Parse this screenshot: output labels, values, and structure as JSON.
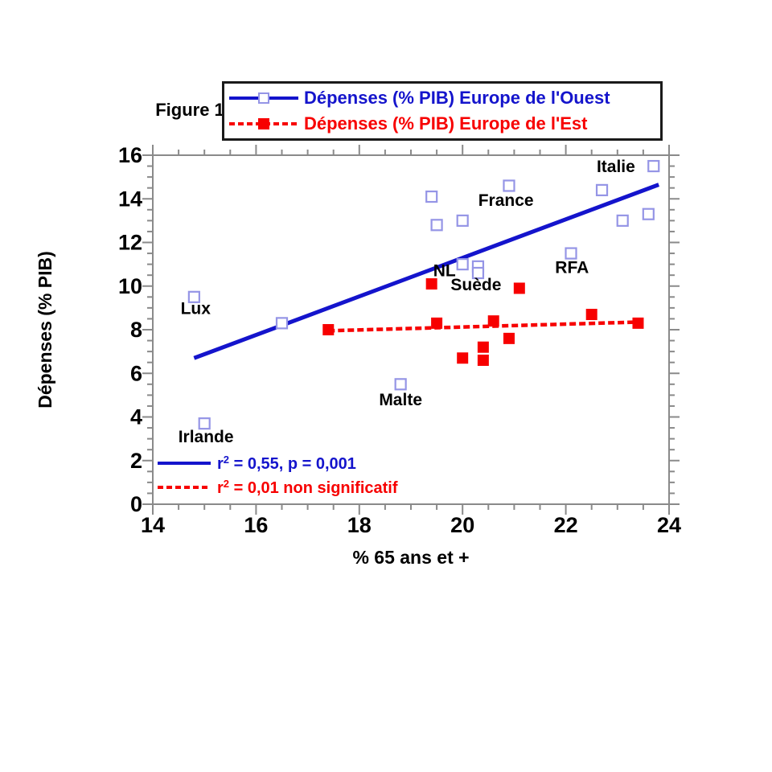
{
  "figure_label": "Figure 1",
  "colors": {
    "west": "#1414cc",
    "east": "#f70000",
    "open_marker_stroke": "#9595e6",
    "axis": "#8a8a8a",
    "text": "#000000",
    "legend_border": "#1a1a1a",
    "background": "#ffffff"
  },
  "legend": {
    "west": "Dépenses (% PIB) Europe de l'Ouest",
    "east": "Dépenses (% PIB) Europe de l'Est"
  },
  "stats": {
    "west": {
      "prefix": "r",
      "sup": "2",
      "rest": " = 0,55, p = 0,001"
    },
    "east": {
      "prefix": "r",
      "sup": "2",
      "rest": " = 0,01 non significatif"
    }
  },
  "chart_data": {
    "type": "scatter",
    "title": "Figure 1",
    "xlabel": "% 65 ans et +",
    "ylabel": "Dépenses (% PIB)",
    "xlim": [
      14,
      24
    ],
    "ylim": [
      0,
      16
    ],
    "x_major_ticks": [
      14,
      16,
      18,
      20,
      22,
      24
    ],
    "y_major_ticks": [
      0,
      2,
      4,
      6,
      8,
      10,
      12,
      14,
      16
    ],
    "minor_tick_step": 0.5,
    "grid": false,
    "legend_position": "top",
    "series": [
      {
        "name": "Dépenses (% PIB) Europe de l'Ouest",
        "color": "#1414cc",
        "marker": "open-square",
        "points": [
          [
            14.8,
            9.5
          ],
          [
            15.0,
            3.7
          ],
          [
            16.5,
            8.3
          ],
          [
            18.8,
            5.5
          ],
          [
            19.4,
            14.1
          ],
          [
            19.5,
            12.8
          ],
          [
            20.0,
            13.0
          ],
          [
            20.9,
            14.6
          ],
          [
            20.0,
            11.0
          ],
          [
            20.3,
            10.9
          ],
          [
            20.3,
            10.6
          ],
          [
            22.1,
            11.5
          ],
          [
            22.7,
            14.4
          ],
          [
            23.1,
            13.0
          ],
          [
            23.6,
            13.3
          ],
          [
            23.7,
            15.5
          ]
        ],
        "trendline": {
          "x1": 14.8,
          "y1": 6.7,
          "x2": 23.8,
          "y2": 14.65,
          "style": "solid",
          "r2": "0,55",
          "p": "0,001"
        }
      },
      {
        "name": "Dépenses (% PIB) Europe de l'Est",
        "color": "#f70000",
        "marker": "filled-square",
        "points": [
          [
            17.4,
            8.0
          ],
          [
            19.4,
            10.1
          ],
          [
            19.5,
            8.3
          ],
          [
            20.0,
            6.7
          ],
          [
            20.4,
            7.2
          ],
          [
            20.4,
            6.6
          ],
          [
            20.6,
            8.4
          ],
          [
            20.9,
            7.6
          ],
          [
            21.1,
            9.9
          ],
          [
            22.5,
            8.7
          ],
          [
            23.4,
            8.3
          ]
        ],
        "trendline": {
          "x1": 17.4,
          "y1": 7.95,
          "x2": 23.4,
          "y2": 8.35,
          "style": "dashed",
          "r2": "0,01",
          "note": "non significatif"
        }
      }
    ],
    "annotations": [
      {
        "text": "Italie",
        "x": 22.97,
        "y": 15.5
      },
      {
        "text": "France",
        "x": 20.84,
        "y": 13.95
      },
      {
        "text": "NL",
        "x": 19.65,
        "y": 10.72
      },
      {
        "text": "Suède",
        "x": 20.26,
        "y": 10.08
      },
      {
        "text": "RFA",
        "x": 22.12,
        "y": 10.87
      },
      {
        "text": "Lux",
        "x": 14.83,
        "y": 9.0
      },
      {
        "text": "Irlande",
        "x": 15.03,
        "y": 3.12
      },
      {
        "text": "Malte",
        "x": 18.8,
        "y": 4.82
      }
    ]
  }
}
